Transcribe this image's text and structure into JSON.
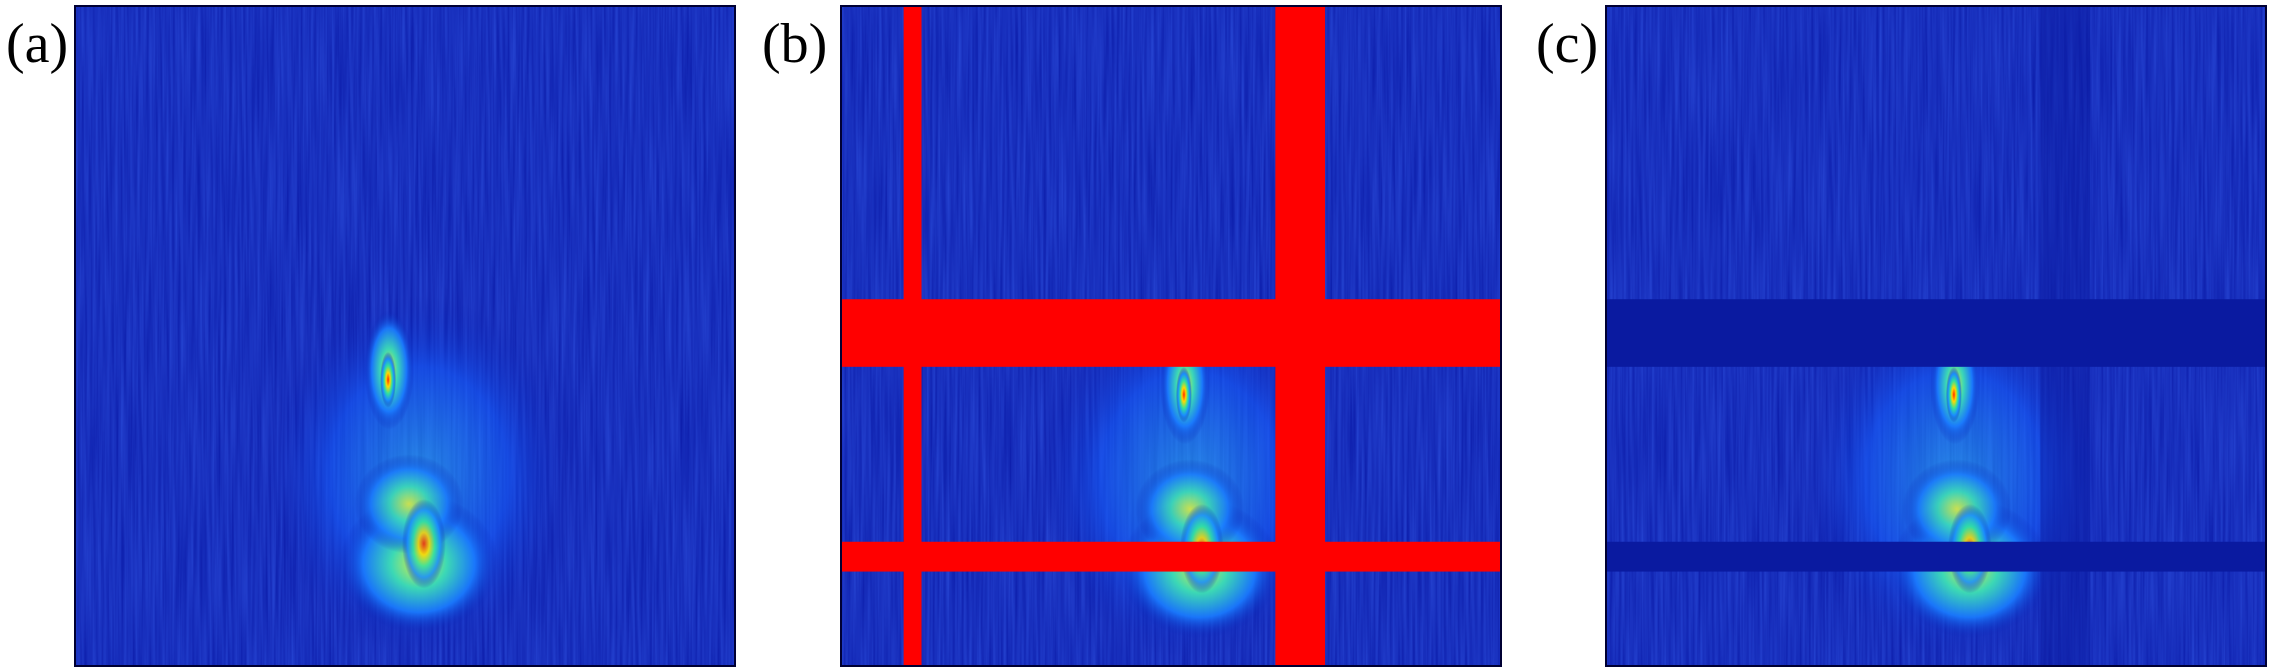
{
  "panels": [
    {
      "label": "(a)"
    },
    {
      "label": "(b)"
    },
    {
      "label": "(c)"
    }
  ],
  "colors": {
    "background_field": "#0a1fb0",
    "mask_red": "#ff0000",
    "mask_filled": "#0a1aa0"
  }
}
